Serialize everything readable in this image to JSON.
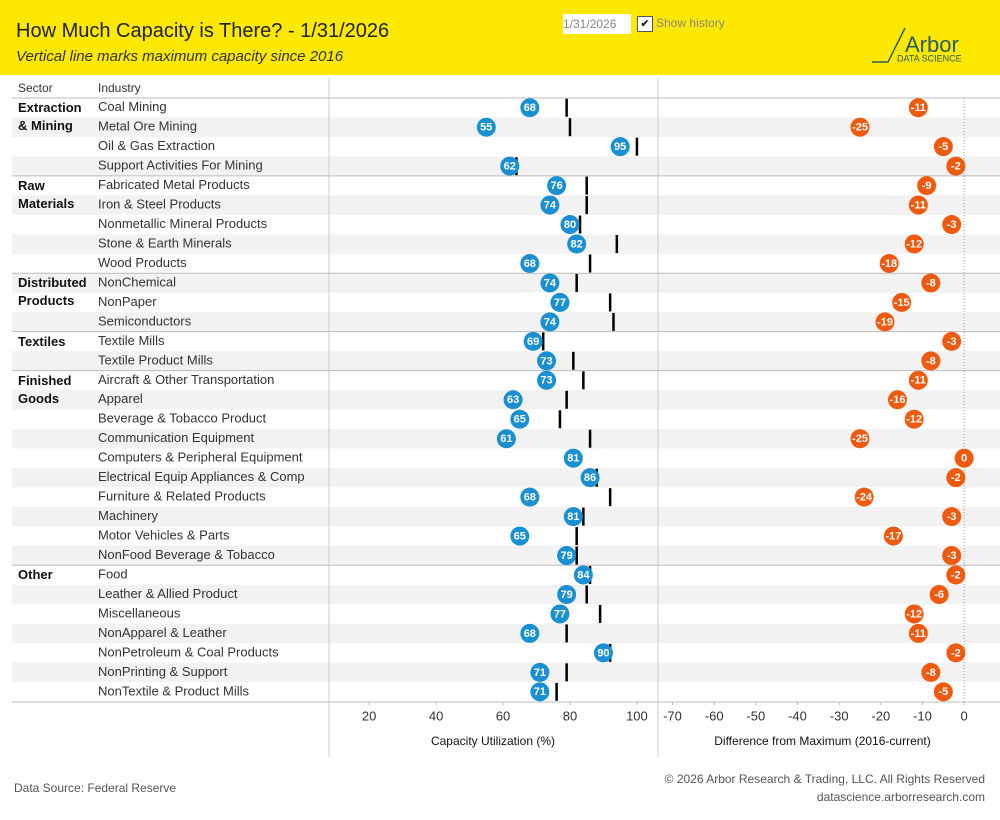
{
  "header": {
    "title": "How Much Capacity is There? - 1/31/2026",
    "subtitle": "Vertical line marks maximum capacity since 2016",
    "date": "1/31/2026",
    "show_history": "Show history",
    "logo": "Arbor",
    "logo_sub": "DATA SCIENCE"
  },
  "table": {
    "sector_header": "Sector",
    "industry_header": "Industry",
    "sectors": [
      {
        "name": "Extraction & Mining",
        "rows": 4
      },
      {
        "name": "Raw Materials",
        "rows": 5
      },
      {
        "name": "Distributed Products",
        "rows": 3
      },
      {
        "name": "Textiles",
        "rows": 2
      },
      {
        "name": "Finished Goods",
        "rows": 10
      },
      {
        "name": "Other",
        "rows": 7
      }
    ]
  },
  "chart_data": [
    {
      "type": "dot",
      "x_label": "Capacity Utilization (%)",
      "color": "#1a8fd1",
      "max_color": "#000000",
      "categories": [
        "Coal Mining",
        "Metal Ore Mining",
        "Oil & Gas Extraction",
        "Support Activities For Mining",
        "Fabricated Metal Products",
        "Iron & Steel Products",
        "Nonmetallic Mineral Products",
        "Stone & Earth Minerals",
        "Wood Products",
        "NonChemical",
        "NonPaper",
        "Semiconductors",
        "Textile Mills",
        "Textile Product Mills",
        "Aircraft & Other Transportation",
        "Apparel",
        "Beverage & Tobacco Product",
        "Communication Equipment",
        "Computers & Peripheral Equipment",
        "Electrical Equip Appliances & Comp",
        "Furniture & Related Products",
        "Machinery",
        "Motor Vehicles & Parts",
        "NonFood Beverage & Tobacco",
        "Food",
        "Leather & Allied Product",
        "Miscellaneous",
        "NonApparel & Leather",
        "NonPetroleum & Coal Products",
        "NonPrinting & Support",
        "NonTextile & Product Mills"
      ],
      "values": [
        68,
        55,
        95,
        62,
        76,
        74,
        80,
        82,
        68,
        74,
        77,
        74,
        69,
        73,
        73,
        63,
        65,
        61,
        81,
        86,
        68,
        81,
        65,
        79,
        84,
        79,
        77,
        68,
        90,
        71,
        71
      ],
      "max_values": [
        79,
        80,
        100,
        64,
        85,
        85,
        83,
        94,
        86,
        82,
        92,
        93,
        72,
        81,
        84,
        79,
        77,
        86,
        81,
        88,
        92,
        84,
        82,
        82,
        86,
        85,
        89,
        79,
        92,
        79,
        76
      ],
      "xlim": [
        8,
        106
      ],
      "xticks": [
        20,
        40,
        60,
        80,
        100
      ]
    },
    {
      "type": "dot",
      "x_label": "Difference from Maximum (2016-current)",
      "color": "#f05a0f",
      "values": [
        -11,
        -25,
        -5,
        -2,
        -9,
        -11,
        -3,
        -12,
        -18,
        -8,
        -15,
        -19,
        -3,
        -8,
        -11,
        -16,
        -12,
        -25,
        0,
        -2,
        -24,
        -3,
        -17,
        -3,
        -2,
        -6,
        -12,
        -11,
        -2,
        -8,
        -5
      ],
      "xlim": [
        -73,
        5
      ],
      "xticks": [
        -70,
        -60,
        -50,
        -40,
        -30,
        -20,
        -10,
        0
      ],
      "zero_line": true
    }
  ],
  "footer": {
    "source": "Data Source: Federal Reserve",
    "copyright": "© 2026 Arbor Research & Trading, LLC. All Rights Reserved",
    "url": "datascience.arborresearch.com"
  }
}
